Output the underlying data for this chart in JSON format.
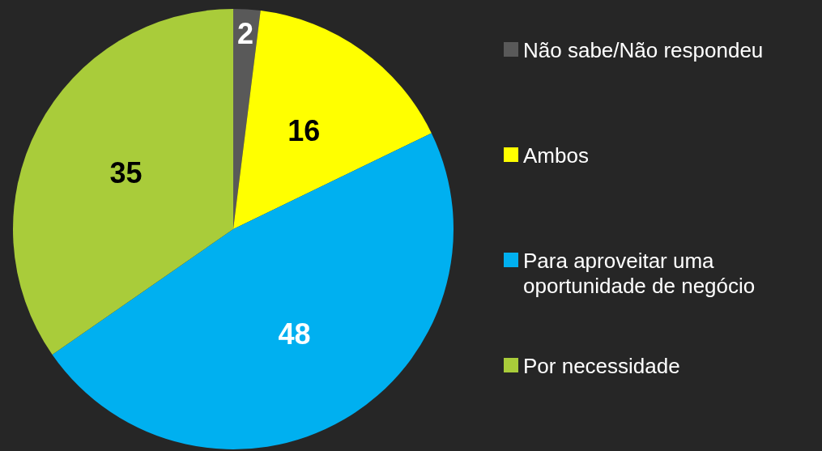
{
  "chart_data": {
    "type": "pie",
    "categories": [
      "Não sabe/Não respondeu",
      "Ambos",
      "Para aproveitar uma oportunidade de negócio",
      "Por necessidade"
    ],
    "values": [
      2,
      16,
      48,
      35
    ],
    "colors": [
      "#595959",
      "#ffff00",
      "#00b0f0",
      "#a9cc3a"
    ],
    "data_labels": true,
    "legend": "right"
  }
}
